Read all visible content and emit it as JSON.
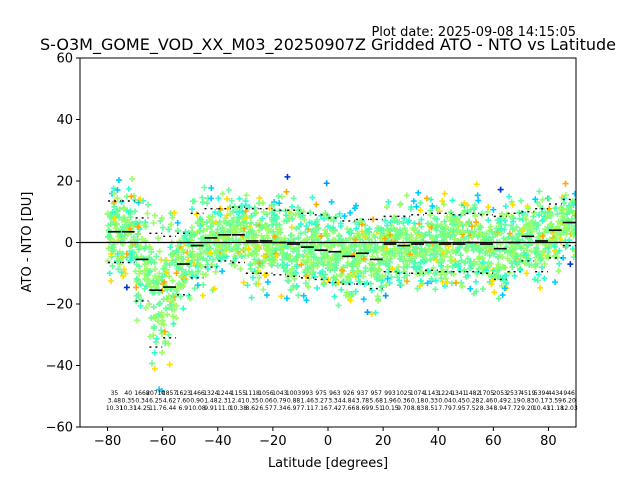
{
  "header": {
    "plot_date": "Plot date: 2025-09-08 14:15:05",
    "title": "S-O3M_GOME_VOD_XX_M03_20250907Z Gridded ATO - NTO vs Latitude"
  },
  "chart_data": {
    "type": "scatter",
    "title": "S-O3M_GOME_VOD_XX_M03_20250907Z Gridded ATO - NTO vs Latitude",
    "xlabel": "Latitude [degrees]",
    "ylabel": "ATO - NTO [DU]",
    "xlim": [
      -90,
      90
    ],
    "ylim": [
      -60,
      60
    ],
    "xticks": [
      -80,
      -60,
      -40,
      -20,
      0,
      20,
      40,
      60,
      80
    ],
    "yticks": [
      -60,
      -40,
      -20,
      0,
      20,
      40,
      60
    ],
    "grid": false,
    "marker": "+",
    "colors": {
      "density": [
        "#0033cc",
        "#0099ff",
        "#00ccff",
        "#33ffcc",
        "#66ff99",
        "#99ff66",
        "#ffdd00",
        "#ffaa00"
      ],
      "bin_mean": "#000000",
      "bin_std": "#000000",
      "zero_line": "#000000"
    },
    "bin_width": 5,
    "bin_centers": [
      -77.5,
      -72.5,
      -67.5,
      -62.5,
      -57.5,
      -52.5,
      -47.5,
      -42.5,
      -37.5,
      -32.5,
      -27.5,
      -22.5,
      -17.5,
      -12.5,
      -7.5,
      -2.5,
      2.5,
      7.5,
      12.5,
      17.5,
      22.5,
      27.5,
      32.5,
      37.5,
      42.5,
      47.5,
      52.5,
      57.5,
      62.5,
      67.5,
      72.5,
      77.5,
      82.5,
      87.5
    ],
    "bin_mean": [
      3.5,
      3.5,
      -5.5,
      -15.5,
      -14.5,
      -7,
      -1,
      1.5,
      2.5,
      2.5,
      0.5,
      0.5,
      0,
      -0.5,
      -1.5,
      -2.5,
      -3,
      -4.5,
      -3.5,
      -5.5,
      -0.5,
      -1,
      -0.5,
      0,
      -0.5,
      -0.5,
      0,
      -0.5,
      -2,
      0,
      2,
      0.5,
      4,
      6.5
    ],
    "bin_std_upper": [
      13.5,
      13.5,
      8,
      3,
      2,
      3,
      9.5,
      11,
      11,
      11.5,
      11,
      11,
      10.5,
      10.5,
      9.5,
      9,
      8,
      7,
      7.5,
      7.5,
      8.5,
      8.5,
      9,
      9.5,
      9.5,
      9,
      9.5,
      9,
      8.5,
      9.5,
      10,
      11,
      12.5,
      14
    ],
    "bin_std_lower": [
      -6.5,
      -6.5,
      -19,
      -34,
      -31,
      -17,
      -11.5,
      -8,
      -6,
      -6.5,
      -10,
      -10,
      -10.5,
      -11,
      -11.5,
      -12,
      -13,
      -13.5,
      -13.5,
      -15,
      -9.5,
      -10,
      -10,
      -9,
      -9.5,
      -9.5,
      -9.5,
      -10,
      -12,
      -9.5,
      -6,
      -9.5,
      -5,
      -1
    ],
    "bin_stats": [
      [
        "35",
        "3.48",
        "10.31"
      ],
      [
        "40",
        "0.35",
        "10.31"
      ],
      [
        "1668",
        "0.34",
        "14.25"
      ],
      [
        "20710",
        "6.25",
        "11.7"
      ],
      [
        "1857",
        "4.62",
        "6.44"
      ],
      [
        "1623",
        "7.60",
        "6.9"
      ],
      [
        "1466",
        "0.90",
        "10.08"
      ],
      [
        "1324",
        "1.48",
        "9.91"
      ],
      [
        "1244",
        "2.31",
        "11.0"
      ],
      [
        "1155",
        "2.41",
        "10.38"
      ],
      [
        "1118",
        "0.35",
        "8.62"
      ],
      [
        "1056",
        "0.06",
        "6.57"
      ],
      [
        "1043",
        "0.79",
        "7.34"
      ],
      [
        "1003",
        "0.88",
        "6.97"
      ],
      [
        "993",
        "1.46",
        "7.11"
      ],
      [
        "975",
        "3.27",
        "7.16"
      ],
      [
        "963",
        "3.34",
        "7.42"
      ],
      [
        "926",
        "4.84",
        "7.66"
      ],
      [
        "937",
        "3.78",
        "8.69"
      ],
      [
        "957",
        "5.68",
        "9.51"
      ],
      [
        "993",
        "1.96",
        "10.15"
      ],
      [
        "1025",
        "0.36",
        "9.70"
      ],
      [
        "1074",
        "0.18",
        "8.83"
      ],
      [
        "1143",
        "0.33",
        "8.51"
      ],
      [
        "1224",
        "0.04",
        "7.79"
      ],
      [
        "1341",
        "0.45",
        "7.95"
      ],
      [
        "1482",
        "0.28",
        "7.52"
      ],
      [
        "1705",
        "2.46",
        "8.34"
      ],
      [
        "2053",
        "0.49",
        "8.94"
      ],
      [
        "2537",
        "2.19",
        "7.72"
      ],
      [
        "4519",
        "0.83",
        "9.20"
      ],
      [
        "5394",
        "0.17",
        "10.43"
      ],
      [
        "4434",
        "3.59",
        "11.18"
      ],
      [
        "946",
        "6.20",
        "12.03"
      ]
    ]
  }
}
